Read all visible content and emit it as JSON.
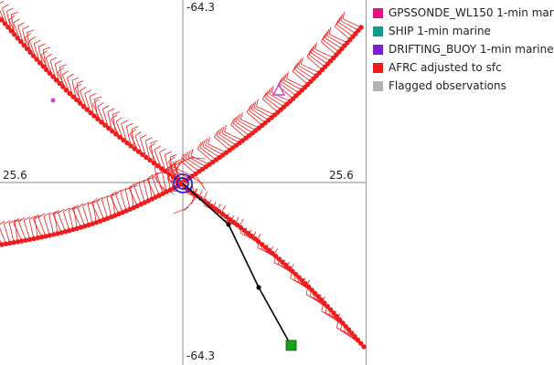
{
  "axis_labels": {
    "top": "-64.3",
    "bottom": "-64.3",
    "left": "25.6",
    "right": "25.6"
  },
  "legend": [
    {
      "label": "GPSSONDE_WL150 1-min mar",
      "color": "#e0157f"
    },
    {
      "label": "SHIP 1-min marine",
      "color": "#0f9b8e"
    },
    {
      "label": "DRIFTING_BUOY 1-min marine",
      "color": "#7b1fd1"
    },
    {
      "label": "AFRC adjusted to sfc",
      "color": "#ee1c1c"
    },
    {
      "label": "Flagged observations",
      "color": "#b3b3b3"
    }
  ],
  "colors": {
    "observation": "#ee1c1c",
    "track": "#000000",
    "center_marker": "#1a1ad6",
    "ship_marker": "#18a218",
    "sonde_marker": "#cc44cc"
  }
}
